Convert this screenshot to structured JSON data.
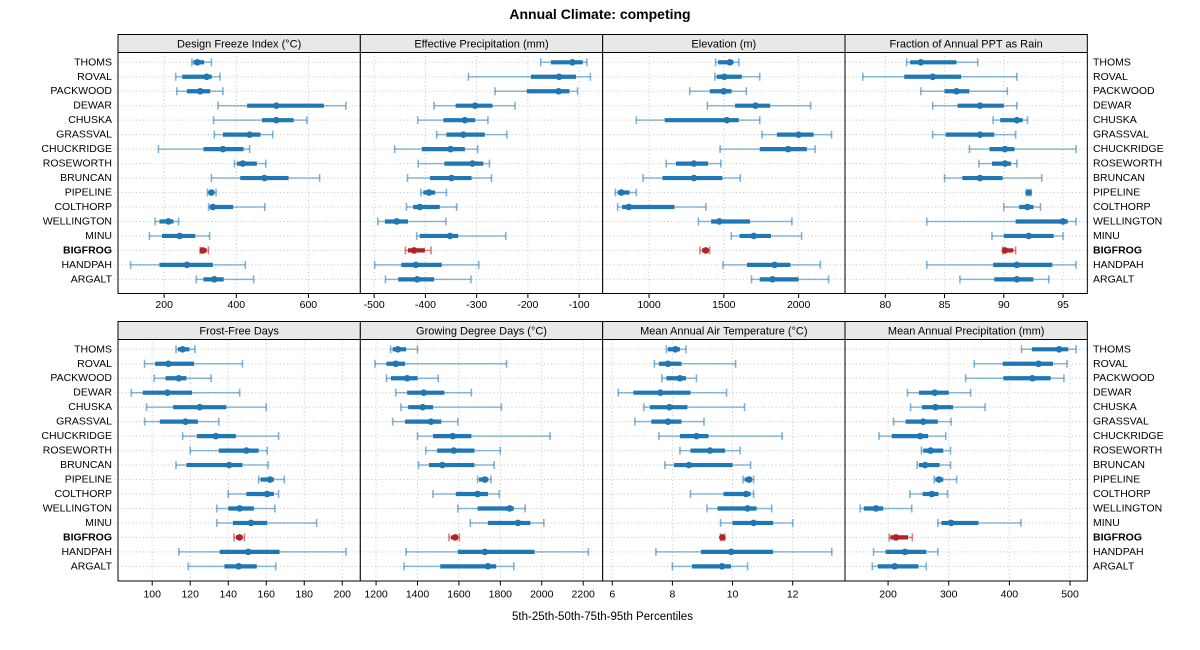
{
  "title": "Annual Climate: competing",
  "xlabel": "5th-25th-50th-75th-95th Percentiles",
  "colors": {
    "series": "#1f77b4",
    "highlight": "#b22222",
    "strip_bg": "#e8e8e8",
    "grid": "#c4c4c4",
    "border": "#000000",
    "text": "#000000",
    "background": "#ffffff"
  },
  "sites": [
    "THOMS",
    "ROVAL",
    "PACKWOOD",
    "DEWAR",
    "CHUSKA",
    "GRASSVAL",
    "CHUCKRIDGE",
    "ROSEWORTH",
    "BRUNCAN",
    "PIPELINE",
    "COLTHORP",
    "WELLINGTON",
    "MINU",
    "BIGFROG",
    "HANDPAH",
    "ARGALT"
  ],
  "chart_data": {
    "type": "dotplot-interval",
    "description": "Trellis dot plot, 2x4 panels; each row of a panel shows 5th-25th-50th-75th-95th percentile interval with median dot; BIGFROG highlighted in red",
    "percentiles": [
      5,
      25,
      50,
      75,
      95
    ],
    "highlight_site": "BIGFROG",
    "legend_position": "none",
    "grid": "dotted",
    "panels": [
      {
        "title": "Design Freeze Index (°C)",
        "row": 0,
        "col": 0,
        "xlim": [
          72,
          744
        ],
        "ticks": [
          200,
          400,
          600
        ],
        "values": [
          [
            277,
            281,
            292,
            311,
            331
          ],
          [
            232,
            250,
            318,
            332,
            355
          ],
          [
            235,
            263,
            300,
            328,
            363
          ],
          [
            349,
            430,
            511,
            643,
            704
          ],
          [
            337,
            471,
            511,
            559,
            596
          ],
          [
            339,
            363,
            437,
            467,
            501
          ],
          [
            184,
            309,
            363,
            420,
            437
          ],
          [
            395,
            402,
            418,
            457,
            482
          ],
          [
            331,
            411,
            478,
            545,
            631
          ],
          [
            320,
            323,
            331,
            339,
            344
          ],
          [
            323,
            326,
            335,
            391,
            479
          ],
          [
            175,
            187,
            212,
            226,
            240
          ],
          [
            159,
            194,
            243,
            286,
            326
          ],
          [
            300,
            302,
            307,
            318,
            323
          ],
          [
            107,
            187,
            263,
            335,
            425
          ],
          [
            289,
            309,
            339,
            365,
            448
          ]
        ]
      },
      {
        "title": "Effective Precipitation (mm)",
        "row": 0,
        "col": 1,
        "xlim": [
          -527,
          -54
        ],
        "ticks": [
          -500,
          -400,
          -300,
          -200,
          -100
        ],
        "values": [
          [
            -175,
            -155,
            -113,
            -93,
            -85
          ],
          [
            -316,
            -194,
            -139,
            -106,
            -78
          ],
          [
            -264,
            -202,
            -140,
            -119,
            -103
          ],
          [
            -383,
            -341,
            -303,
            -269,
            -225
          ],
          [
            -415,
            -365,
            -323,
            -303,
            -278
          ],
          [
            -378,
            -359,
            -326,
            -284,
            -241
          ],
          [
            -460,
            -407,
            -351,
            -323,
            -298
          ],
          [
            -414,
            -363,
            -308,
            -287,
            -275
          ],
          [
            -435,
            -391,
            -349,
            -310,
            -271
          ],
          [
            -409,
            -404,
            -393,
            -381,
            -359
          ],
          [
            -437,
            -424,
            -411,
            -372,
            -339
          ],
          [
            -493,
            -479,
            -456,
            -434,
            -360
          ],
          [
            -417,
            -411,
            -352,
            -336,
            -243
          ],
          [
            -439,
            -434,
            -422,
            -401,
            -389
          ],
          [
            -499,
            -447,
            -419,
            -368,
            -296
          ],
          [
            -478,
            -453,
            -416,
            -383,
            -311
          ]
        ]
      },
      {
        "title": "Elevation (m)",
        "row": 0,
        "col": 2,
        "xlim": [
          690,
          2310
        ],
        "ticks": [
          1000,
          1500,
          2000
        ],
        "values": [
          [
            1445,
            1462,
            1540,
            1565,
            1600
          ],
          [
            1440,
            1452,
            1503,
            1620,
            1740
          ],
          [
            1272,
            1406,
            1500,
            1552,
            1650
          ],
          [
            1390,
            1575,
            1712,
            1810,
            2080
          ],
          [
            915,
            1105,
            1520,
            1600,
            1740
          ],
          [
            1755,
            1855,
            2000,
            2100,
            2220
          ],
          [
            1475,
            1740,
            1930,
            2055,
            2110
          ],
          [
            1115,
            1180,
            1300,
            1395,
            1480
          ],
          [
            960,
            1090,
            1300,
            1490,
            1610
          ],
          [
            775,
            790,
            815,
            870,
            915
          ],
          [
            790,
            820,
            865,
            1170,
            1380
          ],
          [
            1330,
            1415,
            1470,
            1675,
            1955
          ],
          [
            1550,
            1605,
            1700,
            1815,
            2020
          ],
          [
            1340,
            1355,
            1380,
            1395,
            1405
          ],
          [
            1495,
            1655,
            1840,
            1945,
            2145
          ],
          [
            1685,
            1740,
            1825,
            2000,
            2200
          ]
        ]
      },
      {
        "title": "Fraction of Annual PPT as Rain",
        "row": 0,
        "col": 3,
        "xlim": [
          76.6,
          97.05
        ],
        "ticks": [
          80,
          85,
          90,
          95
        ],
        "values": [
          [
            81.8,
            82.1,
            83.0,
            86.0,
            87.8
          ],
          [
            78.1,
            81.6,
            84.0,
            86.4,
            91.1
          ],
          [
            83.0,
            85.0,
            86.0,
            87.1,
            90.3
          ],
          [
            84.0,
            86.1,
            88.0,
            90.0,
            91.1
          ],
          [
            89.1,
            89.7,
            91.1,
            91.6,
            92.0
          ],
          [
            84.0,
            85.1,
            88.0,
            89.2,
            91.0
          ],
          [
            87.1,
            88.8,
            90.1,
            90.9,
            96.1
          ],
          [
            87.9,
            89.0,
            90.1,
            90.6,
            91.1
          ],
          [
            85.0,
            86.5,
            88.0,
            89.9,
            93.2
          ],
          [
            91.9,
            92.0,
            92.1,
            92.2,
            92.3
          ],
          [
            90.0,
            91.3,
            92.0,
            92.5,
            93.1
          ],
          [
            83.5,
            91.0,
            95.0,
            95.4,
            96.1
          ],
          [
            89.0,
            90.0,
            92.1,
            94.2,
            95.0
          ],
          [
            89.9,
            90.0,
            90.1,
            90.8,
            91.0
          ],
          [
            83.5,
            89.1,
            91.1,
            94.1,
            96.1
          ],
          [
            86.3,
            89.2,
            91.1,
            92.5,
            93.8
          ]
        ]
      },
      {
        "title": "Frost-Free Days",
        "row": 1,
        "col": 0,
        "xlim": [
          82,
          209.5
        ],
        "ticks": [
          100,
          120,
          140,
          160,
          180,
          200
        ],
        "values": [
          [
            112.5,
            113.5,
            116,
            119.5,
            122.5
          ],
          [
            96,
            101.5,
            108.5,
            122,
            147.5
          ],
          [
            101,
            107,
            114,
            118,
            131
          ],
          [
            89,
            95,
            108,
            121,
            146
          ],
          [
            97,
            111,
            125,
            139,
            160
          ],
          [
            96,
            104,
            117.5,
            124,
            135
          ],
          [
            116,
            123.5,
            133.5,
            144,
            166.5
          ],
          [
            120,
            135,
            149.5,
            156,
            160.5
          ],
          [
            112.5,
            118,
            140.5,
            147.5,
            161
          ],
          [
            156,
            157,
            162,
            164,
            169.5
          ],
          [
            140,
            149.5,
            160.5,
            164,
            166.5
          ],
          [
            134,
            140,
            146,
            153.5,
            164.5
          ],
          [
            134,
            142.5,
            152,
            160.5,
            186.5
          ],
          [
            143,
            144,
            146,
            147.5,
            148.5
          ],
          [
            114,
            135.5,
            150.5,
            167,
            202
          ],
          [
            119,
            138,
            145.5,
            155,
            165
          ]
        ]
      },
      {
        "title": "Growing Degree Days (°C)",
        "row": 1,
        "col": 1,
        "xlim": [
          1124,
          2294
        ],
        "ticks": [
          1200,
          1400,
          1600,
          1800,
          2000,
          2200
        ],
        "values": [
          [
            1270,
            1280,
            1305,
            1345,
            1400
          ],
          [
            1195,
            1250,
            1295,
            1340,
            1830
          ],
          [
            1250,
            1272,
            1350,
            1400,
            1500
          ],
          [
            1295,
            1350,
            1430,
            1530,
            1660
          ],
          [
            1320,
            1355,
            1425,
            1475,
            1805
          ],
          [
            1280,
            1340,
            1465,
            1515,
            1595
          ],
          [
            1400,
            1475,
            1570,
            1660,
            2040
          ],
          [
            1440,
            1495,
            1575,
            1675,
            1800
          ],
          [
            1405,
            1455,
            1520,
            1675,
            1770
          ],
          [
            1690,
            1697,
            1725,
            1742,
            1755
          ],
          [
            1475,
            1585,
            1690,
            1740,
            1795
          ],
          [
            1595,
            1690,
            1845,
            1865,
            1920
          ],
          [
            1655,
            1740,
            1885,
            1945,
            2010
          ],
          [
            1552,
            1562,
            1582,
            1595,
            1602
          ],
          [
            1345,
            1595,
            1725,
            1965,
            2225
          ],
          [
            1335,
            1510,
            1740,
            1780,
            1865
          ]
        ]
      },
      {
        "title": "Mean Annual Air Temperature (°C)",
        "row": 1,
        "col": 2,
        "xlim": [
          5.68,
          13.74
        ],
        "ticks": [
          6,
          8,
          10,
          12
        ],
        "values": [
          [
            7.8,
            7.85,
            8.1,
            8.25,
            8.45
          ],
          [
            7.4,
            7.55,
            7.85,
            8.3,
            10.1
          ],
          [
            7.65,
            7.8,
            8.25,
            8.45,
            8.8
          ],
          [
            6.2,
            6.7,
            7.6,
            8.6,
            9.8
          ],
          [
            7.05,
            7.25,
            7.9,
            8.5,
            10.4
          ],
          [
            6.75,
            7.3,
            7.85,
            8.3,
            9.05
          ],
          [
            7.55,
            8.25,
            8.8,
            9.2,
            11.65
          ],
          [
            8.25,
            8.6,
            9.25,
            9.75,
            10.25
          ],
          [
            7.75,
            8.05,
            8.55,
            10.0,
            10.6
          ],
          [
            10.35,
            10.4,
            10.55,
            10.65,
            10.7
          ],
          [
            8.6,
            9.7,
            10.45,
            10.6,
            10.7
          ],
          [
            9.15,
            9.5,
            10.5,
            10.8,
            11.3
          ],
          [
            9.6,
            10.0,
            10.7,
            11.35,
            12.0
          ],
          [
            9.6,
            9.62,
            9.66,
            9.7,
            9.74
          ],
          [
            7.45,
            8.95,
            9.95,
            11.35,
            13.3
          ],
          [
            8.0,
            8.65,
            9.65,
            9.95,
            10.5
          ]
        ]
      },
      {
        "title": "Mean Annual Precipitation (mm)",
        "row": 1,
        "col": 3,
        "xlim": [
          129,
          528.5
        ],
        "ticks": [
          200,
          300,
          400,
          500
        ],
        "values": [
          [
            420,
            437,
            482,
            497,
            510
          ],
          [
            342,
            389,
            448,
            472,
            495
          ],
          [
            328,
            390,
            438,
            468,
            490
          ],
          [
            232,
            251,
            277,
            300,
            336
          ],
          [
            237,
            256,
            278,
            307,
            360
          ],
          [
            209,
            229,
            258,
            282,
            304
          ],
          [
            185,
            206,
            253,
            266,
            295
          ],
          [
            255,
            258,
            270,
            291,
            303
          ],
          [
            248,
            251,
            261,
            285,
            303
          ],
          [
            276,
            278,
            284,
            291,
            313
          ],
          [
            236,
            257,
            272,
            283,
            298
          ],
          [
            154,
            160,
            180,
            192,
            239
          ],
          [
            282,
            288,
            304,
            349,
            419
          ],
          [
            202,
            204,
            213,
            233,
            240
          ],
          [
            176,
            196,
            228,
            263,
            282
          ],
          [
            174,
            183,
            211,
            250,
            263
          ]
        ]
      }
    ]
  }
}
